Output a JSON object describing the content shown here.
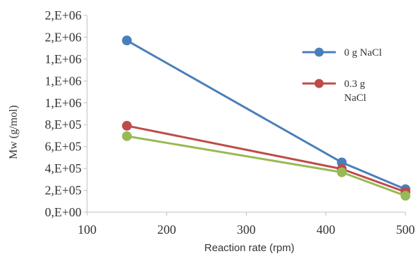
{
  "chart_data": {
    "type": "line",
    "xlabel": "Reaction rate (rpm)",
    "ylabel": "Mw  (g/mol)",
    "xlim": [
      100,
      500
    ],
    "ylim": [
      0,
      1800000
    ],
    "x_ticks": [
      100,
      200,
      300,
      400,
      500
    ],
    "x_tick_labels": [
      "100",
      "200",
      "300",
      "400",
      "500"
    ],
    "y_ticks": [
      0,
      200000,
      400000,
      600000,
      800000,
      1000000,
      1200000,
      1400000,
      1600000,
      1800000
    ],
    "y_tick_labels": [
      "0,E+00",
      "2,E+05",
      "4,E+05",
      "6,E+05",
      "8,E+05",
      "1,E+06",
      "1,E+06",
      "1,E+06",
      "2,E+06",
      "2,E+06"
    ],
    "grid": false,
    "legend_position": "right",
    "series": [
      {
        "name": "0 g NaCl",
        "color": "#4a7ebb",
        "x": [
          150,
          420,
          500
        ],
        "y": [
          1570000,
          455000,
          210000
        ]
      },
      {
        "name": "0.3 g NaCl",
        "color": "#be4b48",
        "x": [
          150,
          420,
          500
        ],
        "y": [
          790000,
          395000,
          185000
        ]
      },
      {
        "color": "#98b954",
        "x": [
          150,
          420,
          500
        ],
        "y": [
          695000,
          365000,
          150000
        ]
      }
    ]
  }
}
